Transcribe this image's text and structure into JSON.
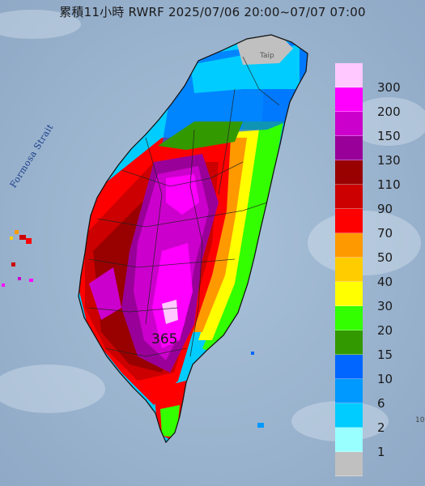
{
  "title": "累積11小時 RWRF 2025/07/06 20:00~07/07 07:00",
  "strait_label": "Formosa Strait",
  "city_label": "Taip",
  "peak_value": "365",
  "edge_label": "10",
  "colors": {
    "sea": "#9fb8d2",
    "land": "#d9dde2",
    "mountain": "#bfc7d1"
  },
  "legend": {
    "labels": [
      "300",
      "200",
      "150",
      "130",
      "110",
      "90",
      "70",
      "50",
      "40",
      "30",
      "20",
      "15",
      "10",
      "6",
      "2",
      "1"
    ],
    "colors": [
      "#ffc8ff",
      "#ff00ff",
      "#cc00cc",
      "#990099",
      "#990000",
      "#cc0000",
      "#ff0000",
      "#ff9900",
      "#ffcc00",
      "#ffff00",
      "#33ff00",
      "#339900",
      "#0066ff",
      "#0099ff",
      "#00ccff",
      "#99ffff",
      "#c0c0c0"
    ]
  },
  "map_data": {
    "type": "rainfall-accumulation",
    "region": "Taiwan",
    "model": "RWRF",
    "hours": 11,
    "start": "2025/07/06 20:00",
    "end": "2025/07/07 07:00",
    "max_value": 365,
    "pattern": "heaviest rain (150-300) over southwest and central mountains, decreasing toward the east coast; north tip dry"
  }
}
